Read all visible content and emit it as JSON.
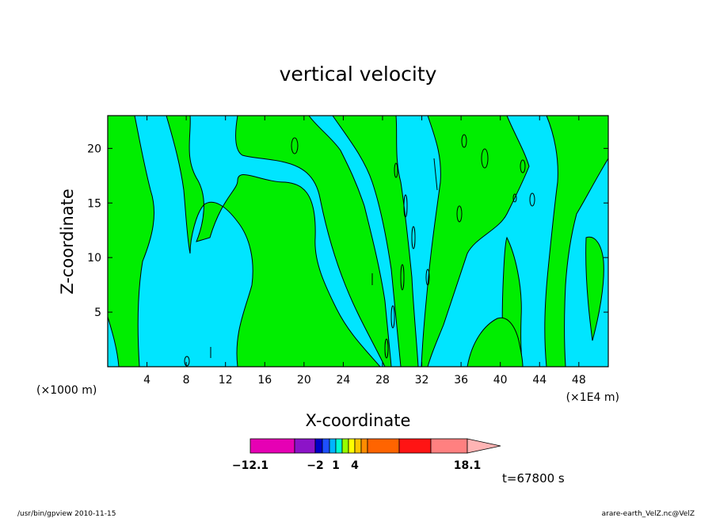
{
  "chart_data": {
    "type": "heatmap",
    "title": "vertical velocity",
    "xlabel": "X-coordinate",
    "ylabel": "Z-coordinate",
    "x_unit_left": "(×1000 m)",
    "x_unit_right": "(×1E4 m)",
    "xlim": [
      0,
      51
    ],
    "ylim": [
      0,
      23
    ],
    "x_ticks": [
      4,
      8,
      12,
      16,
      20,
      24,
      28,
      32,
      36,
      40,
      44,
      48
    ],
    "y_ticks": [
      5,
      10,
      15,
      20
    ],
    "field_colors": {
      "negative": "#00e5ff",
      "positive": "#00ee00",
      "contour": "#000000"
    },
    "colorbar": {
      "colors": [
        "#e600b4",
        "#8c14c8",
        "#0000c8",
        "#1e50ff",
        "#00b4ff",
        "#00ffd2",
        "#96ff00",
        "#ffff00",
        "#ffc800",
        "#ff8c00",
        "#ff6400",
        "#ff1414",
        "#ff8080",
        "#ffb4b4"
      ],
      "labels": [
        {
          "text": "−12.1",
          "value": -12.1
        },
        {
          "text": "−2",
          "value": -2
        },
        {
          "text": "1",
          "value": 1
        },
        {
          "text": "4",
          "value": 4
        },
        {
          "text": "18.1",
          "value": 18.1
        }
      ]
    },
    "time_label": "t=67800 s"
  },
  "footer": {
    "left": "/usr/bin/gpview   2010-11-15",
    "right": "arare-earth_VelZ.nc@VelZ"
  }
}
